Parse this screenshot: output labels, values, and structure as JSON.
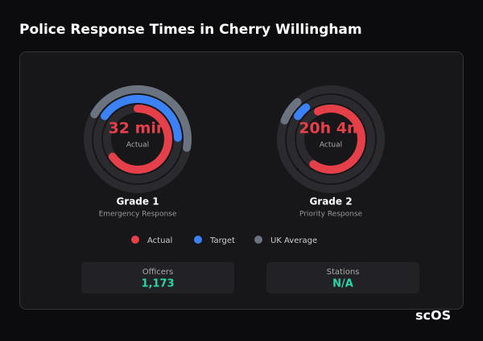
{
  "header": {
    "title": "Police Response Times in Cherry Willingham"
  },
  "gauges": [
    {
      "value_label": "32 min",
      "caption": "Actual",
      "title": "Grade 1",
      "subtitle": "Emergency Response"
    },
    {
      "value_label": "20h 4m",
      "caption": "Actual",
      "title": "Grade 2",
      "subtitle": "Priority Response"
    }
  ],
  "legend": [
    "Actual",
    "Target",
    "UK Average"
  ],
  "stats": [
    {
      "label": "Officers",
      "value": "1,173"
    },
    {
      "label": "Stations",
      "value": "N/A"
    }
  ],
  "logo": "scOS"
}
